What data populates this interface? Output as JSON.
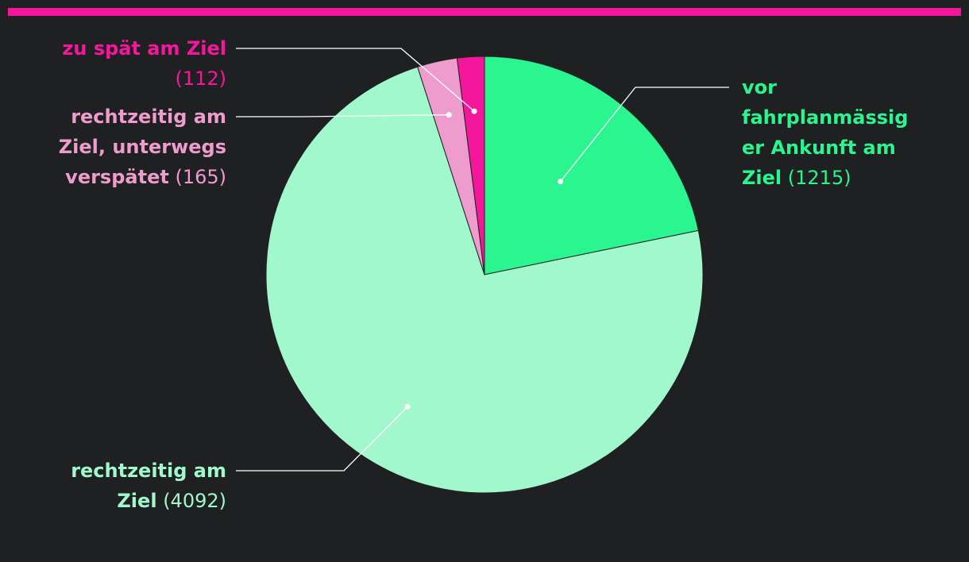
{
  "chart_data": {
    "type": "pie",
    "slices": [
      {
        "label": "vor fahrplanmässiger Ankunft am Ziel",
        "label_lines": [
          "vor",
          "fahrplanmässig",
          "er Ankunft am",
          "Ziel"
        ],
        "value": 1215,
        "value_text": "(1215)",
        "color": "#2af58f"
      },
      {
        "label": "rechtzeitig am Ziel",
        "label_lines": [
          "rechtzeitig am",
          "Ziel"
        ],
        "value": 4092,
        "value_text": "(4092)",
        "color": "#a1f8cd"
      },
      {
        "label": "rechtzeitig am Ziel, unterwegs verspätet",
        "label_lines": [
          "rechtzeitig am",
          "Ziel, unterwegs",
          "verspätet"
        ],
        "value": 165,
        "value_text": "(165)",
        "color": "#ee9bcd"
      },
      {
        "label": "zu spät am Ziel",
        "label_lines": [
          "zu spät am Ziel"
        ],
        "value": 112,
        "value_text": "(112)",
        "color": "#f5179b"
      }
    ]
  },
  "style": {
    "background": "#1f2022",
    "top_bar_color": "#f5179b",
    "leader_color": "#ffffff"
  }
}
